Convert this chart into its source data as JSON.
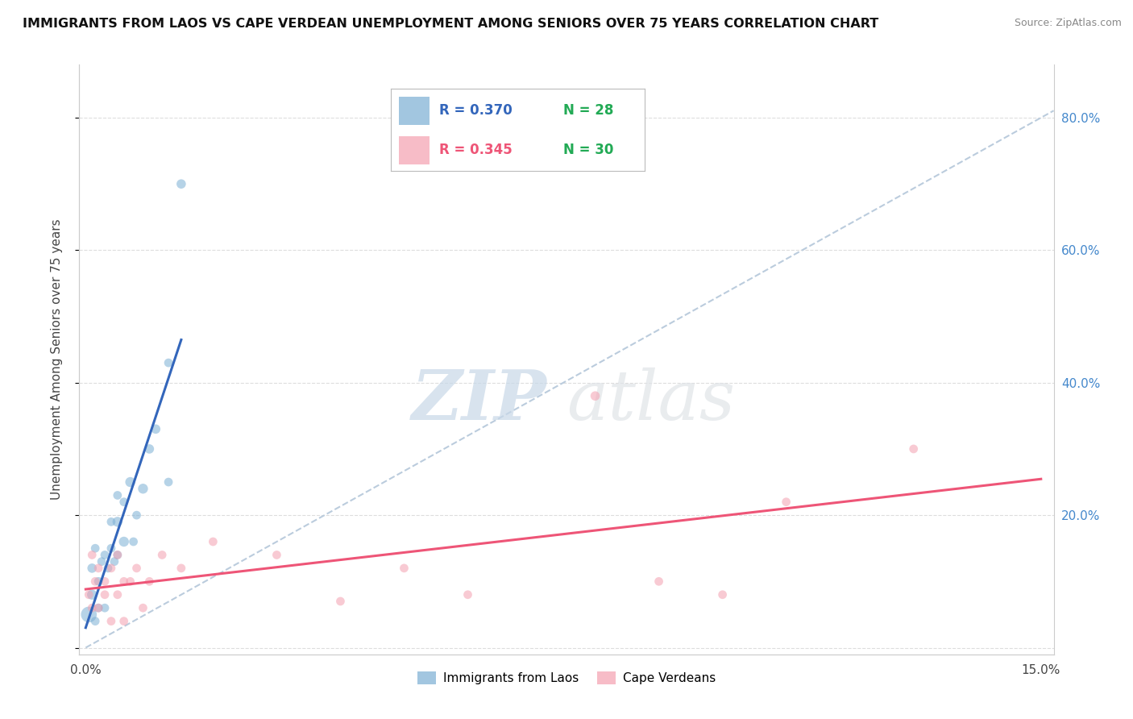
{
  "title": "IMMIGRANTS FROM LAOS VS CAPE VERDEAN UNEMPLOYMENT AMONG SENIORS OVER 75 YEARS CORRELATION CHART",
  "source": "Source: ZipAtlas.com",
  "ylabel": "Unemployment Among Seniors over 75 years",
  "xlim": [
    -0.001,
    0.152
  ],
  "ylim": [
    -0.01,
    0.88
  ],
  "xticks": [
    0.0,
    0.05,
    0.1,
    0.15
  ],
  "xtick_labels": [
    "0.0%",
    "",
    "",
    "15.0%"
  ],
  "ytick_positions": [
    0.0,
    0.2,
    0.4,
    0.6,
    0.8
  ],
  "ytick_labels_right": [
    "",
    "20.0%",
    "40.0%",
    "60.0%",
    "80.0%"
  ],
  "legend_r1": "R = 0.370",
  "legend_n1": "N = 28",
  "legend_r2": "R = 0.345",
  "legend_n2": "N = 30",
  "blue_color": "#7BAFD4",
  "pink_color": "#F4A0B0",
  "trendline_blue": "#3366BB",
  "trendline_pink": "#EE5577",
  "diagonal_color": "#BBCCDD",
  "laos_x": [
    0.0005,
    0.001,
    0.0015,
    0.001,
    0.002,
    0.0015,
    0.002,
    0.0025,
    0.003,
    0.003,
    0.0035,
    0.004,
    0.004,
    0.0045,
    0.005,
    0.005,
    0.005,
    0.006,
    0.006,
    0.007,
    0.0075,
    0.008,
    0.009,
    0.01,
    0.011,
    0.013,
    0.013,
    0.015
  ],
  "laos_y": [
    0.05,
    0.08,
    0.04,
    0.12,
    0.06,
    0.15,
    0.1,
    0.13,
    0.06,
    0.14,
    0.12,
    0.15,
    0.19,
    0.13,
    0.14,
    0.19,
    0.23,
    0.16,
    0.22,
    0.25,
    0.16,
    0.2,
    0.24,
    0.3,
    0.33,
    0.25,
    0.43,
    0.7
  ],
  "laos_size": [
    200,
    80,
    60,
    70,
    60,
    60,
    60,
    60,
    60,
    60,
    60,
    60,
    60,
    60,
    60,
    80,
    60,
    80,
    60,
    80,
    60,
    60,
    80,
    70,
    70,
    60,
    60,
    70
  ],
  "verde_x": [
    0.0005,
    0.001,
    0.001,
    0.0015,
    0.002,
    0.002,
    0.003,
    0.003,
    0.004,
    0.004,
    0.005,
    0.005,
    0.006,
    0.006,
    0.007,
    0.008,
    0.009,
    0.01,
    0.012,
    0.015,
    0.02,
    0.03,
    0.04,
    0.05,
    0.06,
    0.08,
    0.09,
    0.1,
    0.11,
    0.13
  ],
  "verde_y": [
    0.08,
    0.14,
    0.06,
    0.1,
    0.06,
    0.12,
    0.08,
    0.1,
    0.04,
    0.12,
    0.08,
    0.14,
    0.1,
    0.04,
    0.1,
    0.12,
    0.06,
    0.1,
    0.14,
    0.12,
    0.16,
    0.14,
    0.07,
    0.12,
    0.08,
    0.38,
    0.1,
    0.08,
    0.22,
    0.3
  ],
  "verde_size": [
    60,
    60,
    60,
    60,
    60,
    60,
    60,
    60,
    60,
    60,
    60,
    60,
    60,
    60,
    60,
    60,
    60,
    60,
    60,
    60,
    60,
    60,
    60,
    60,
    60,
    70,
    60,
    60,
    60,
    60
  ],
  "watermark_zip": "ZIP",
  "watermark_atlas": "atlas",
  "background_color": "#FFFFFF"
}
